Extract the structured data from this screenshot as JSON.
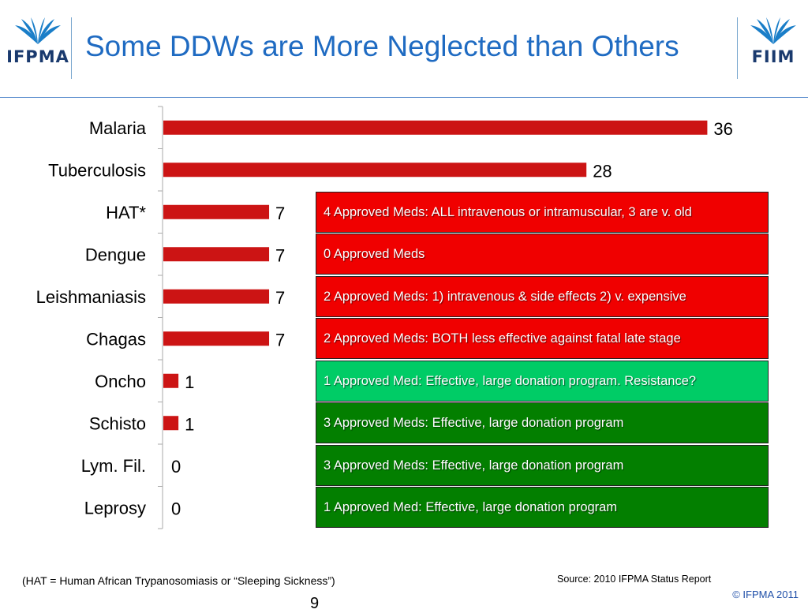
{
  "title": "Some DDWs are More Neglected than Others",
  "logos": {
    "left": "IFPMA",
    "right": "FIIM"
  },
  "chart_data": {
    "type": "bar",
    "orientation": "horizontal",
    "categories": [
      "Malaria",
      "Tuberculosis",
      "HAT*",
      "Dengue",
      "Leishmaniasis",
      "Chagas",
      "Oncho",
      "Schisto",
      "Lym. Fil.",
      "Leprosy"
    ],
    "values": [
      36,
      28,
      7,
      7,
      7,
      7,
      1,
      1,
      0,
      0
    ],
    "data_labels": [
      "36",
      "28",
      "7",
      "7",
      "7",
      "7",
      "1",
      "1",
      "0",
      "0"
    ],
    "bar_color": "#cc1414",
    "title": "",
    "xlabel": "",
    "ylabel": "",
    "xlim": [
      0,
      36
    ],
    "grid": false,
    "legend": "none"
  },
  "annotations": [
    {
      "category": "HAT*",
      "text": "4 Approved Meds: ALL intravenous or intramuscular, 3 are v. old",
      "color": "#f00000"
    },
    {
      "category": "Dengue",
      "text": "0 Approved Meds",
      "color": "#f00000"
    },
    {
      "category": "Leishmaniasis",
      "text": "2 Approved Meds: 1) intravenous & side effects 2) v. expensive",
      "color": "#f00000"
    },
    {
      "category": "Chagas",
      "text": "2 Approved Meds: BOTH less effective against fatal late stage",
      "color": "#f00000"
    },
    {
      "category": "Oncho",
      "text": "1 Approved Med: Effective, large donation program. Resistance?",
      "color": "#00cc66"
    },
    {
      "category": "Schisto",
      "text": "3 Approved Meds: Effective, large donation program",
      "color": "#037f00"
    },
    {
      "category": "Lym. Fil.",
      "text": "3 Approved Meds: Effective, large donation program",
      "color": "#037f00"
    },
    {
      "category": "Leprosy",
      "text": "1 Approved Med: Effective, large donation program",
      "color": "#037f00"
    }
  ],
  "footer": {
    "note": "(HAT = Human African Trypanosomiasis or “Sleeping Sickness”)",
    "source": "Source: 2010 IFPMA Status Report",
    "copyright": "© IFPMA 2011",
    "page_number": "9"
  }
}
